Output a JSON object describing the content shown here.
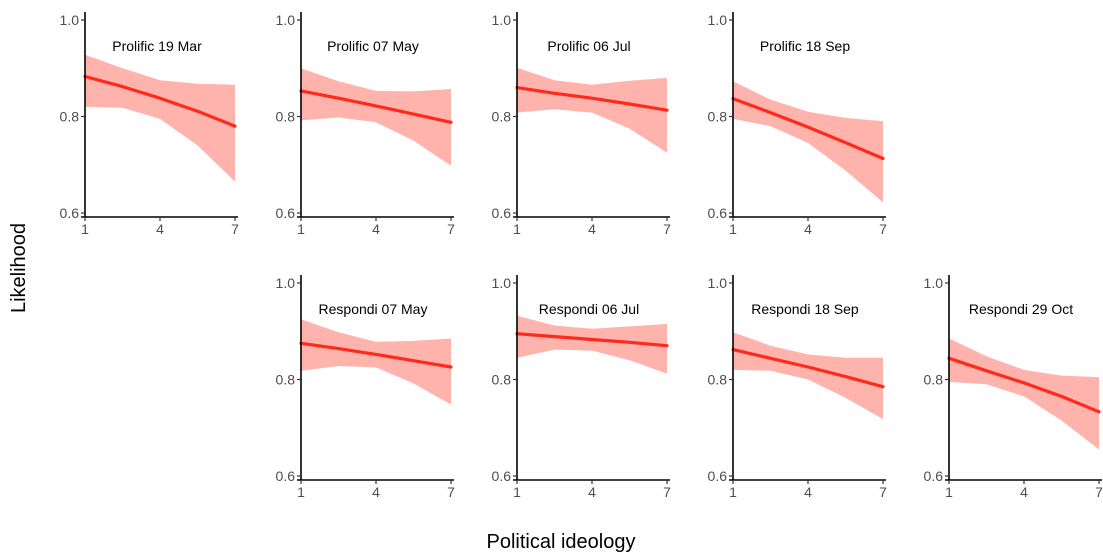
{
  "chart_data": {
    "type": "line",
    "xlabel": "Political ideology",
    "ylabel": "Likelihood",
    "xlim": [
      1,
      7
    ],
    "ylim": [
      0.6,
      1.0
    ],
    "x_ticks": [
      1,
      4,
      7
    ],
    "y_ticks": [
      0.6,
      0.8,
      1.0
    ],
    "y_tick_labels": [
      "0.6",
      "0.8",
      "1.0"
    ],
    "x_tick_labels": [
      "1",
      "4",
      "7"
    ],
    "line_color": "#ff2a1a",
    "band_color": "#ffb3ad",
    "grid": false,
    "panels": [
      {
        "title": "Prolific 19 Mar",
        "row": 0,
        "col": 0,
        "x": [
          1,
          2.5,
          4,
          5.5,
          7
        ],
        "fit": [
          0.883,
          0.862,
          0.838,
          0.811,
          0.78
        ],
        "lower": [
          0.82,
          0.818,
          0.795,
          0.74,
          0.665
        ],
        "upper": [
          0.928,
          0.9,
          0.875,
          0.868,
          0.866
        ]
      },
      {
        "title": "Prolific 07 May",
        "row": 0,
        "col": 1,
        "x": [
          1,
          2.5,
          4,
          5.5,
          7
        ],
        "fit": [
          0.853,
          0.838,
          0.822,
          0.805,
          0.788
        ],
        "lower": [
          0.792,
          0.798,
          0.788,
          0.75,
          0.698
        ],
        "upper": [
          0.9,
          0.873,
          0.853,
          0.852,
          0.857
        ]
      },
      {
        "title": "Prolific 06 Jul",
        "row": 0,
        "col": 2,
        "x": [
          1,
          2.5,
          4,
          5.5,
          7
        ],
        "fit": [
          0.86,
          0.848,
          0.838,
          0.826,
          0.813
        ],
        "lower": [
          0.808,
          0.815,
          0.808,
          0.775,
          0.725
        ],
        "upper": [
          0.901,
          0.875,
          0.866,
          0.874,
          0.88
        ]
      },
      {
        "title": "Prolific 18 Sep",
        "row": 0,
        "col": 3,
        "x": [
          1,
          2.5,
          4,
          5.5,
          7
        ],
        "fit": [
          0.837,
          0.808,
          0.778,
          0.746,
          0.713
        ],
        "lower": [
          0.795,
          0.78,
          0.745,
          0.688,
          0.622
        ],
        "upper": [
          0.873,
          0.835,
          0.81,
          0.797,
          0.79
        ]
      },
      {
        "title": "Respondi 07 May",
        "row": 1,
        "col": 1,
        "x": [
          1,
          2.5,
          4,
          5.5,
          7
        ],
        "fit": [
          0.875,
          0.864,
          0.852,
          0.839,
          0.826
        ],
        "lower": [
          0.818,
          0.828,
          0.825,
          0.792,
          0.748
        ],
        "upper": [
          0.925,
          0.898,
          0.878,
          0.88,
          0.885
        ]
      },
      {
        "title": "Respondi 06 Jul",
        "row": 1,
        "col": 2,
        "x": [
          1,
          2.5,
          4,
          5.5,
          7
        ],
        "fit": [
          0.895,
          0.889,
          0.883,
          0.877,
          0.87
        ],
        "lower": [
          0.845,
          0.862,
          0.86,
          0.84,
          0.812
        ],
        "upper": [
          0.932,
          0.912,
          0.905,
          0.91,
          0.915
        ]
      },
      {
        "title": "Respondi 18 Sep",
        "row": 1,
        "col": 3,
        "x": [
          1,
          2.5,
          4,
          5.5,
          7
        ],
        "fit": [
          0.862,
          0.844,
          0.826,
          0.806,
          0.785
        ],
        "lower": [
          0.82,
          0.818,
          0.8,
          0.762,
          0.718
        ],
        "upper": [
          0.898,
          0.87,
          0.852,
          0.845,
          0.845
        ]
      },
      {
        "title": "Respondi 29 Oct",
        "row": 1,
        "col": 4,
        "x": [
          1,
          2.5,
          4,
          5.5,
          7
        ],
        "fit": [
          0.844,
          0.818,
          0.793,
          0.765,
          0.733
        ],
        "lower": [
          0.795,
          0.79,
          0.765,
          0.715,
          0.655
        ],
        "upper": [
          0.885,
          0.848,
          0.82,
          0.808,
          0.805
        ]
      }
    ]
  }
}
